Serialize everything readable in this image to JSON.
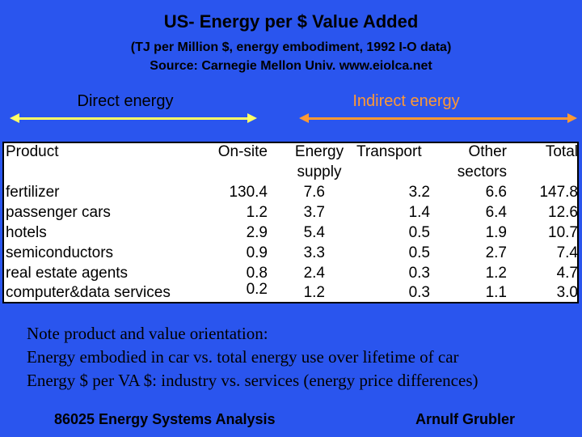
{
  "title": "US- Energy per $ Value Added",
  "subtitle1": "(TJ per Million $, energy embodiment, 1992 I-O data)",
  "subtitle2": "Source: Carnegie Mellon Univ. www.eiolca.net",
  "colors": {
    "background": "#2a55ee",
    "direct_arrow": "#ffff66",
    "indirect_arrow": "#ff9933"
  },
  "labels": {
    "direct": "Direct energy",
    "indirect": "Indirect energy"
  },
  "table": {
    "headers": {
      "product": "Product",
      "onsite": "On-site",
      "energy1": "Energy",
      "energy2": "supply",
      "transport": "Transport",
      "other1": "Other",
      "other2": "sectors",
      "total": "Total"
    },
    "rows": [
      {
        "product": "fertilizer",
        "onsite": "130.4",
        "energy": "7.6",
        "transport": "3.2",
        "other": "6.6",
        "total": "147.8"
      },
      {
        "product": "passenger cars",
        "onsite": "1.2",
        "energy": "3.7",
        "transport": "1.4",
        "other": "6.4",
        "total": "12.6"
      },
      {
        "product": "hotels",
        "onsite": "2.9",
        "energy": "5.4",
        "transport": "0.5",
        "other": "1.9",
        "total": "10.7"
      },
      {
        "product": "semiconductors",
        "onsite": "0.9",
        "energy": "3.3",
        "transport": "0.5",
        "other": "2.7",
        "total": "7.4"
      },
      {
        "product": "real estate agents",
        "onsite": "0.8",
        "energy": "2.4",
        "transport": "0.3",
        "other": "1.2",
        "total": "4.7"
      },
      {
        "product": "computer&data services",
        "onsite": "0.2",
        "energy": "1.2",
        "transport": "0.3",
        "other": "1.1",
        "total": "3.0"
      }
    ]
  },
  "notes": [
    "Note product and value orientation:",
    "Energy embodied in car vs. total energy use over lifetime of car",
    "Energy $ per VA $: industry vs. services (energy price differences)"
  ],
  "footer": {
    "left": "86025 Energy Systems Analysis",
    "right": "Arnulf Grubler"
  }
}
